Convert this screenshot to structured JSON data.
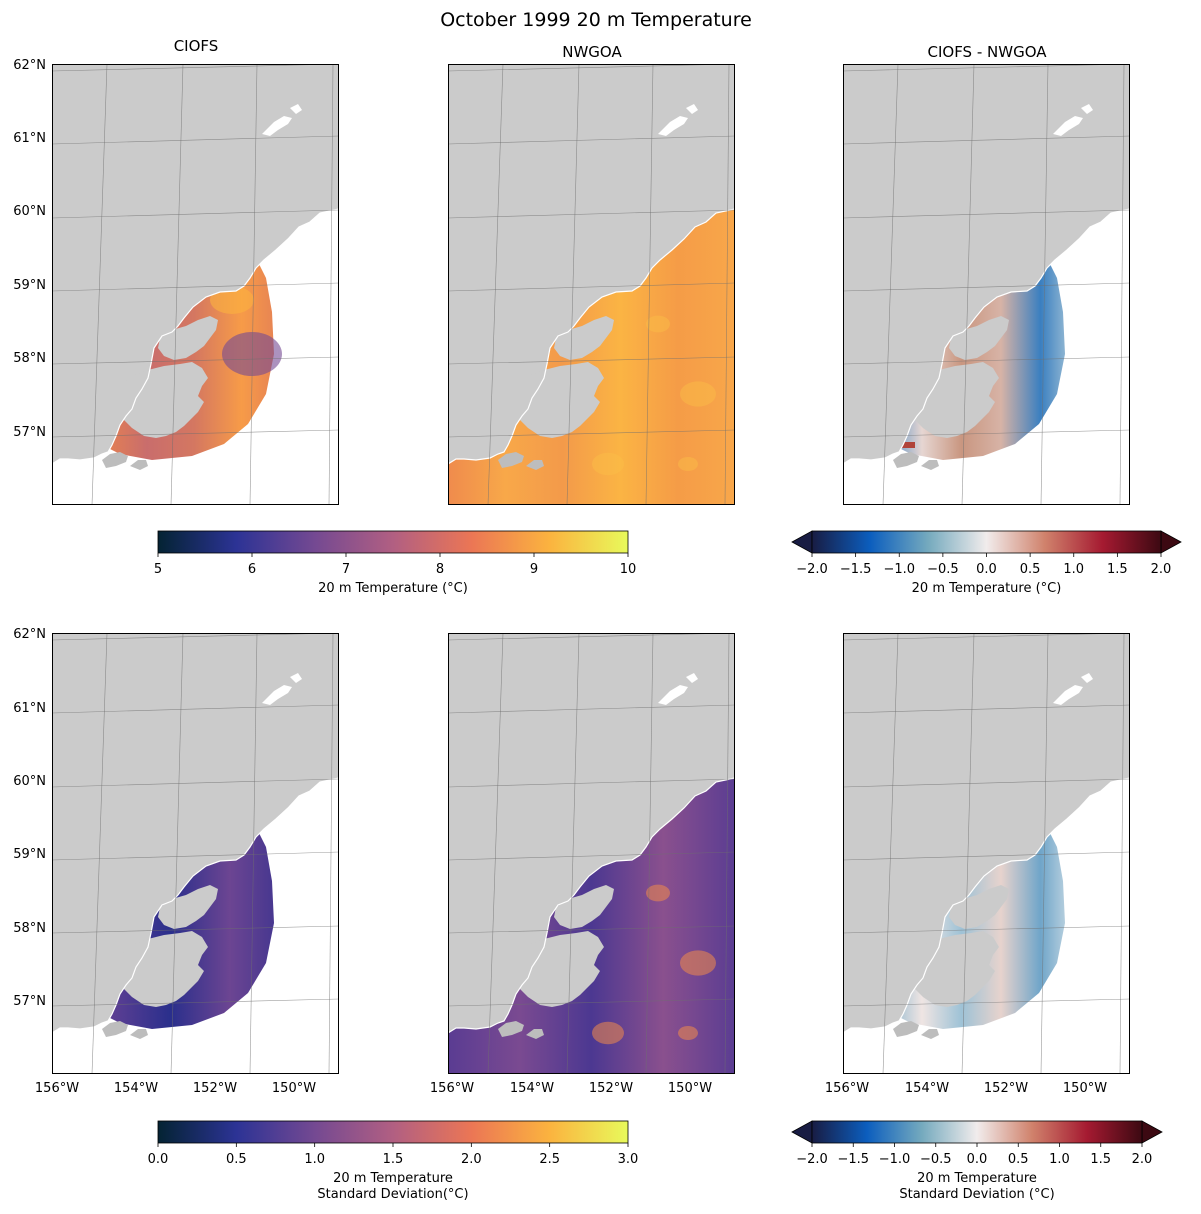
{
  "title": "October 1999 20 m Temperature",
  "panels": [
    {
      "id": "ciofs_temp",
      "title": "CIOFS",
      "field": "temp_a",
      "cmap": "thermal",
      "domain": "ciofs"
    },
    {
      "id": "nwgoa_temp",
      "title": "NWGOA",
      "field": "temp_b",
      "cmap": "thermal",
      "domain": "nwgoa"
    },
    {
      "id": "diff_temp",
      "title": "CIOFS - NWGOA",
      "field": "diff",
      "cmap": "balance",
      "domain": "diff"
    },
    {
      "id": "ciofs_std",
      "title": "",
      "field": "std_a",
      "cmap": "thermal",
      "domain": "ciofs"
    },
    {
      "id": "nwgoa_std",
      "title": "",
      "field": "std_b",
      "cmap": "thermal",
      "domain": "nwgoa"
    },
    {
      "id": "diff_std",
      "title": "",
      "field": "diffstd",
      "cmap": "balance",
      "domain": "diff"
    }
  ],
  "lat_labels": [
    "62°N",
    "61°N",
    "60°N",
    "59°N",
    "58°N",
    "57°N"
  ],
  "lon_labels": [
    "156°W",
    "154°W",
    "152°W",
    "150°W"
  ],
  "colorbars": [
    {
      "id": "cb_temp",
      "ticks": [
        "5",
        "6",
        "7",
        "8",
        "9",
        "10"
      ],
      "label_lines": [
        "20 m Temperature (°C)"
      ],
      "cmap": "thermal",
      "extend": false
    },
    {
      "id": "cb_diff",
      "ticks": [
        "−2.0",
        "−1.5",
        "−1.0",
        "−0.5",
        "0.0",
        "0.5",
        "1.0",
        "1.5",
        "2.0"
      ],
      "label_lines": [
        "20 m Temperature (°C)"
      ],
      "cmap": "balance",
      "extend": true
    },
    {
      "id": "cb_std",
      "ticks": [
        "0.0",
        "0.5",
        "1.0",
        "1.5",
        "2.0",
        "2.5",
        "3.0"
      ],
      "label_lines": [
        "20 m Temperature",
        "Standard Deviation(°C)"
      ],
      "cmap": "thermal",
      "extend": false
    },
    {
      "id": "cb_stddiff",
      "ticks": [
        "−2.0",
        "−1.5",
        "−1.0",
        "−0.5",
        "0.0",
        "0.5",
        "1.0",
        "1.5",
        "2.0"
      ],
      "label_lines": [
        "20 m Temperature",
        "Standard Deviation (°C)"
      ],
      "cmap": "balance",
      "extend": true
    }
  ],
  "colors": {
    "land": "#cbcbcb",
    "thermal": [
      "#042333",
      "#2c3395",
      "#744992",
      "#b15f82",
      "#eb7655",
      "#fbb33f",
      "#e8fa5b"
    ],
    "balance": [
      "#181c43",
      "#0c5ebe",
      "#75aabe",
      "#f1ecec",
      "#d0826c",
      "#a51a31",
      "#3c0912"
    ]
  }
}
